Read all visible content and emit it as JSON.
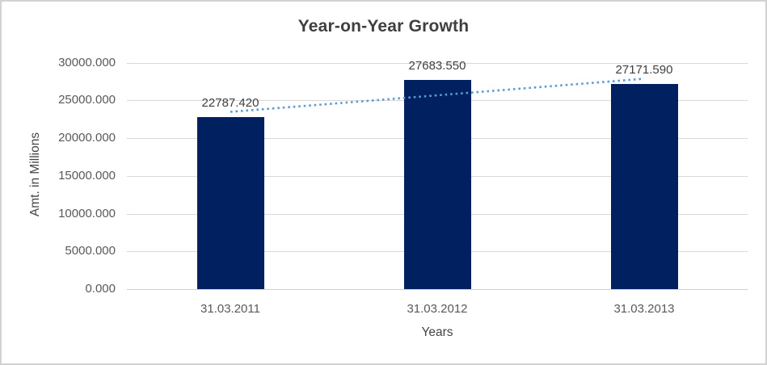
{
  "chart_data": {
    "type": "bar",
    "title": "Year-on-Year Growth",
    "xlabel": "Years",
    "ylabel": "Amt. in Millions",
    "categories": [
      "31.03.2011",
      "31.03.2012",
      "31.03.2013"
    ],
    "values": [
      22787.42,
      27683.55,
      27171.59
    ],
    "data_labels": [
      "22787.420",
      "27683.550",
      "27171.590"
    ],
    "y_ticks": [
      {
        "value": 0,
        "label": "0.000"
      },
      {
        "value": 5000,
        "label": "5000.000"
      },
      {
        "value": 10000,
        "label": "10000.000"
      },
      {
        "value": 15000,
        "label": "15000.000"
      },
      {
        "value": 20000,
        "label": "20000.000"
      },
      {
        "value": 25000,
        "label": "25000.000"
      },
      {
        "value": 30000,
        "label": "30000.000"
      }
    ],
    "ylim": [
      0,
      30000
    ],
    "grid": true,
    "legend": "none",
    "colors": {
      "bar": "#002060",
      "trendline": "#5b9bd5",
      "gridline": "#d9d9d9",
      "title_text": "#3f3f3f",
      "tick_text": "#595959"
    },
    "trendline": {
      "type": "linear",
      "style": "dotted"
    }
  }
}
